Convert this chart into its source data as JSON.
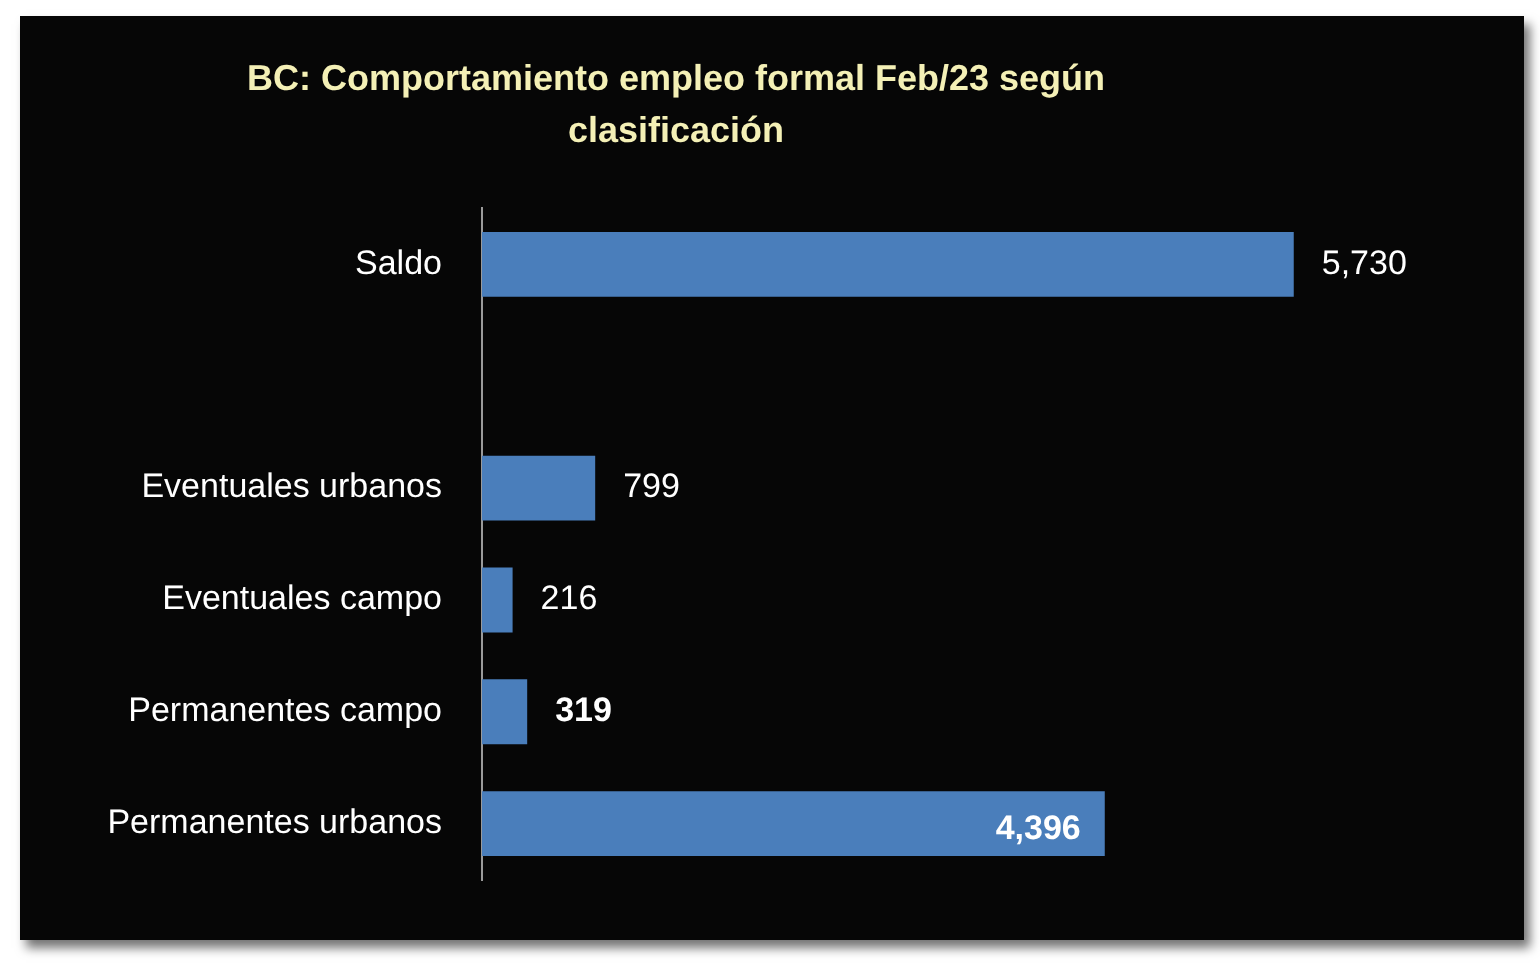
{
  "chart_data": {
    "type": "bar",
    "orientation": "horizontal",
    "title": "BC: Comportamiento empleo formal Feb/23 según clasificación",
    "categories": [
      "Saldo",
      null,
      "Eventuales urbanos",
      "Eventuales campo",
      "Permanentes campo",
      "Permanentes urbanos"
    ],
    "values": [
      5730,
      null,
      799,
      216,
      319,
      4396
    ],
    "color": "#4a7ebb",
    "value_labels": [
      "5,730",
      null,
      "799",
      "216",
      "319",
      "4,396"
    ],
    "tick_labels": "y"
  }
}
